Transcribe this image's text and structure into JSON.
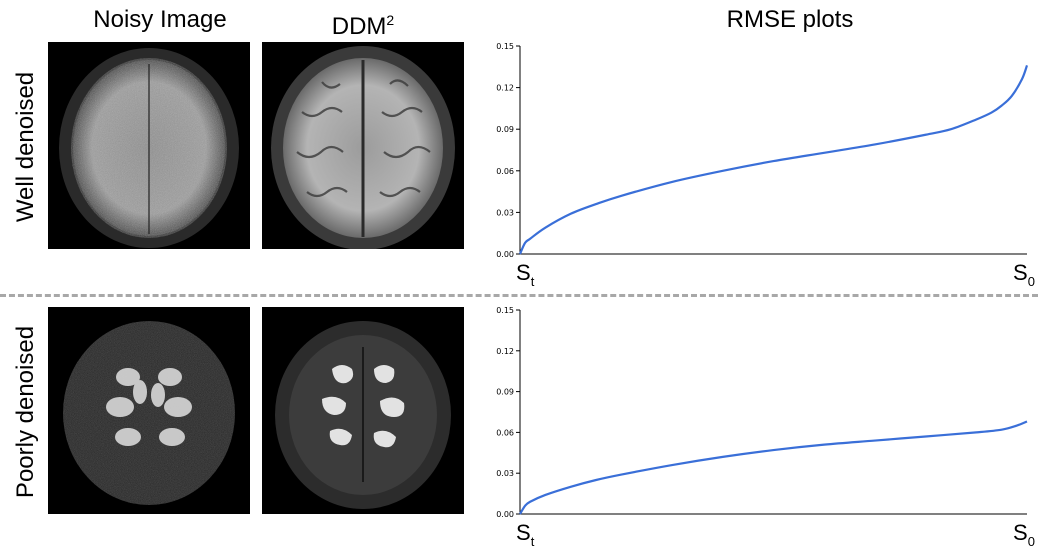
{
  "header": {
    "col1": "Noisy Image",
    "col2_base": "DDM",
    "col2_sup": "2",
    "col3": "RMSE plots"
  },
  "rows": [
    {
      "label": "Well denoised"
    },
    {
      "label": "Poorly denoised"
    }
  ],
  "colors": {
    "curve": "#3a6fd8",
    "divider": "#a8a8a8"
  },
  "chart_data": [
    {
      "type": "line",
      "title": "",
      "xlabel": "",
      "ylabel": "",
      "ylim": [
        0,
        0.15
      ],
      "yticks": [
        "0.00",
        "0.03",
        "0.06",
        "0.09",
        "0.12",
        "0.15"
      ],
      "x_start_label": {
        "base": "S",
        "sub": "t"
      },
      "x_end_label": {
        "base": "S",
        "sub": "0"
      },
      "grid": false,
      "series": [
        {
          "x": [
            0.0,
            0.01,
            0.02,
            0.05,
            0.1,
            0.15,
            0.2,
            0.3,
            0.4,
            0.5,
            0.6,
            0.7,
            0.8,
            0.85,
            0.9,
            0.93,
            0.95,
            0.97,
            0.99,
            1.0
          ],
          "y": [
            0.0,
            0.008,
            0.011,
            0.019,
            0.029,
            0.036,
            0.042,
            0.052,
            0.06,
            0.067,
            0.073,
            0.079,
            0.086,
            0.09,
            0.097,
            0.102,
            0.107,
            0.114,
            0.126,
            0.136
          ]
        }
      ]
    },
    {
      "type": "line",
      "title": "",
      "xlabel": "",
      "ylabel": "",
      "ylim": [
        0,
        0.15
      ],
      "yticks": [
        "0.00",
        "0.03",
        "0.06",
        "0.09",
        "0.12",
        "0.15"
      ],
      "x_start_label": {
        "base": "S",
        "sub": "t"
      },
      "x_end_label": {
        "base": "S",
        "sub": "0"
      },
      "grid": false,
      "series": [
        {
          "x": [
            0.0,
            0.01,
            0.02,
            0.05,
            0.1,
            0.15,
            0.2,
            0.3,
            0.4,
            0.5,
            0.6,
            0.7,
            0.8,
            0.9,
            0.95,
            0.98,
            1.0
          ],
          "y": [
            0.0,
            0.006,
            0.009,
            0.014,
            0.02,
            0.025,
            0.029,
            0.036,
            0.042,
            0.047,
            0.051,
            0.054,
            0.057,
            0.06,
            0.062,
            0.065,
            0.068
          ]
        }
      ]
    }
  ]
}
